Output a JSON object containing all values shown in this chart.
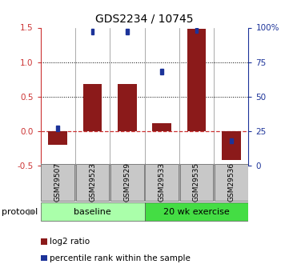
{
  "title": "GDS2234 / 10745",
  "samples": [
    "GSM29507",
    "GSM29523",
    "GSM29529",
    "GSM29533",
    "GSM29535",
    "GSM29536"
  ],
  "log2_ratio": [
    -0.2,
    0.68,
    0.68,
    0.12,
    1.48,
    -0.42
  ],
  "percentile_rank": [
    27,
    97,
    97,
    68,
    98,
    18
  ],
  "ylim_left": [
    -0.5,
    1.5
  ],
  "ylim_right": [
    0,
    100
  ],
  "bar_color": "#8B1A1A",
  "dot_color": "#1C3399",
  "zero_line_color": "#CC3333",
  "dotted_lines": [
    0.5,
    1.0
  ],
  "protocol_groups": [
    {
      "label": "baseline",
      "start": 0,
      "end": 2,
      "color": "#AAFFAA"
    },
    {
      "label": "20 wk exercise",
      "start": 3,
      "end": 5,
      "color": "#44DD44"
    }
  ],
  "protocol_label": "protocol",
  "legend_items": [
    {
      "label": "log2 ratio",
      "color": "#8B1A1A"
    },
    {
      "label": "percentile rank within the sample",
      "color": "#1C3399"
    }
  ],
  "yticks_left": [
    -0.5,
    0.0,
    0.5,
    1.0,
    1.5
  ],
  "yticks_right": [
    0,
    25,
    50,
    75,
    100
  ],
  "ytick_labels_right": [
    "0",
    "25",
    "50",
    "75",
    "100%"
  ],
  "sample_box_color": "#C8C8C8",
  "vline_color": "#888888",
  "bg_color": "white"
}
